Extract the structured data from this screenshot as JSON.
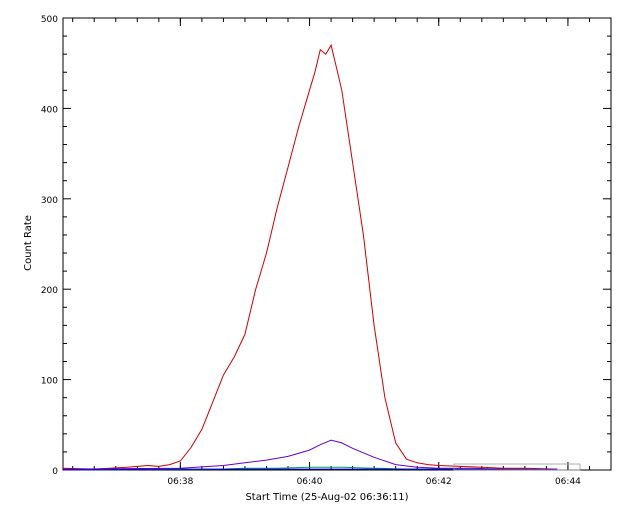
{
  "chart_data": {
    "type": "line",
    "title": "",
    "xlabel": "Start Time (25-Aug-02 06:36:11)",
    "ylabel": "Count Rate",
    "x_unit": "time (HH:MM)",
    "xlim": [
      "06:36:11",
      "06:44:40"
    ],
    "ylim": [
      0,
      500
    ],
    "x_ticks": [
      "06:38",
      "06:40",
      "06:42",
      "06:44"
    ],
    "y_ticks": [
      0,
      100,
      200,
      300,
      400,
      500
    ],
    "grid": false,
    "legend": "none",
    "series": [
      {
        "color": "#cc0000",
        "x": [
          "06:36:11",
          "06:36:40",
          "06:37:10",
          "06:37:30",
          "06:37:40",
          "06:37:50",
          "06:38:00",
          "06:38:10",
          "06:38:20",
          "06:38:30",
          "06:38:40",
          "06:38:50",
          "06:39:00",
          "06:39:10",
          "06:39:20",
          "06:39:30",
          "06:39:40",
          "06:39:50",
          "06:40:00",
          "06:40:05",
          "06:40:10",
          "06:40:15",
          "06:40:20",
          "06:40:25",
          "06:40:30",
          "06:40:40",
          "06:40:50",
          "06:41:00",
          "06:41:10",
          "06:41:20",
          "06:41:30",
          "06:41:40",
          "06:41:50",
          "06:42:00",
          "06:42:20",
          "06:42:40",
          "06:43:00",
          "06:43:20",
          "06:43:50"
        ],
        "values": [
          2,
          1,
          3,
          5,
          4,
          6,
          10,
          25,
          45,
          75,
          105,
          125,
          150,
          200,
          240,
          290,
          335,
          380,
          420,
          440,
          465,
          460,
          470,
          445,
          420,
          340,
          260,
          160,
          80,
          30,
          12,
          8,
          6,
          5,
          4,
          3,
          2,
          2,
          1
        ]
      },
      {
        "color": "#6600cc",
        "x": [
          "06:36:11",
          "06:38:00",
          "06:38:40",
          "06:39:00",
          "06:39:20",
          "06:39:40",
          "06:40:00",
          "06:40:10",
          "06:40:20",
          "06:40:30",
          "06:40:40",
          "06:41:00",
          "06:41:20",
          "06:41:40",
          "06:42:00",
          "06:42:30",
          "06:43:00",
          "06:43:50"
        ],
        "values": [
          1,
          2,
          5,
          8,
          11,
          15,
          22,
          28,
          33,
          30,
          24,
          14,
          6,
          3,
          2,
          2,
          1,
          1
        ]
      },
      {
        "color": "#009966",
        "x": [
          "06:36:11",
          "06:38:40",
          "06:39:00",
          "06:39:30",
          "06:40:00",
          "06:40:30",
          "06:41:00",
          "06:41:30",
          "06:42:00",
          "06:43:50"
        ],
        "values": [
          0,
          1,
          2,
          2,
          3,
          3,
          2,
          1,
          1,
          0
        ]
      },
      {
        "color": "#0000cc",
        "x": [
          "06:36:11",
          "06:38:00",
          "06:39:00",
          "06:40:00",
          "06:41:00",
          "06:42:00",
          "06:43:50"
        ],
        "values": [
          0,
          1,
          1,
          1,
          1,
          1,
          0
        ]
      }
    ]
  }
}
